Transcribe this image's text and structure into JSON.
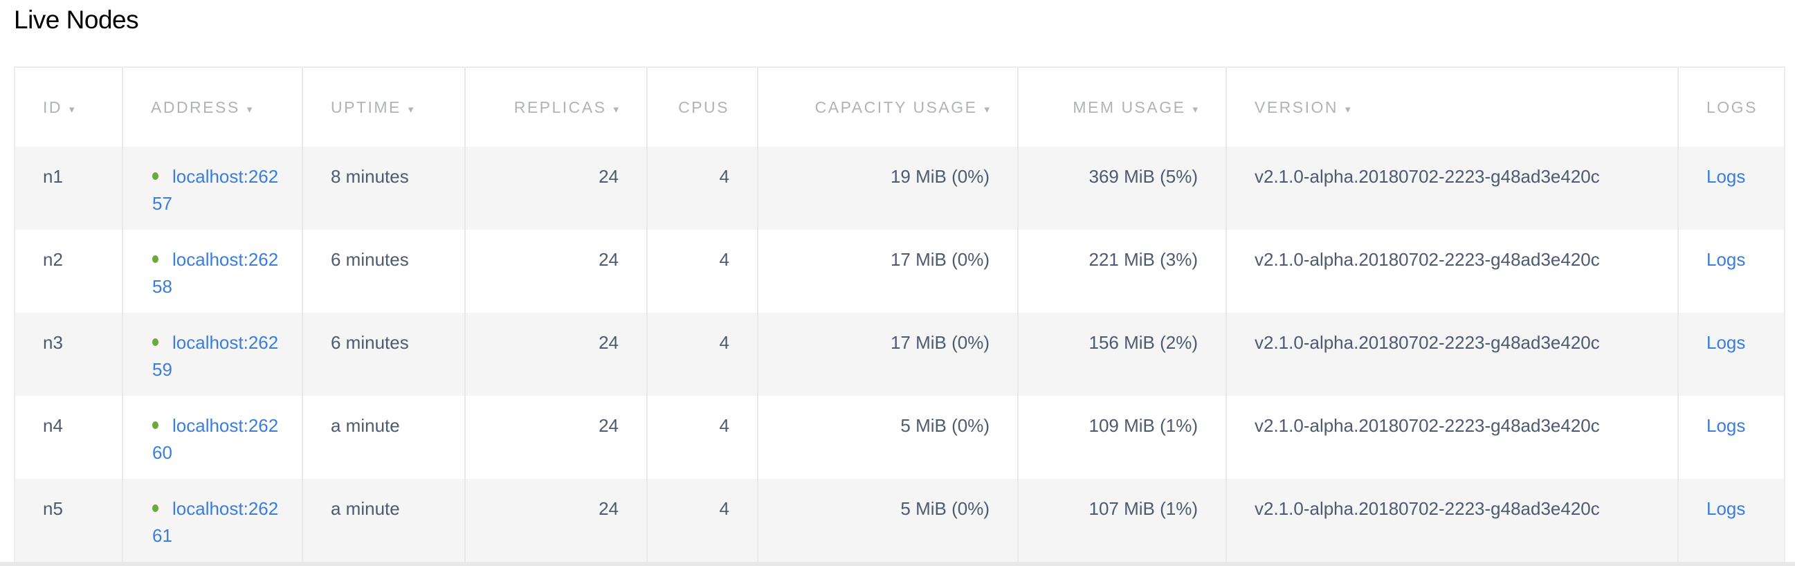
{
  "title": "Live Nodes",
  "columns": [
    {
      "label": "ID",
      "sortable": true
    },
    {
      "label": "ADDRESS",
      "sortable": true
    },
    {
      "label": "UPTIME",
      "sortable": true
    },
    {
      "label": "REPLICAS",
      "sortable": true
    },
    {
      "label": "CPUS",
      "sortable": false
    },
    {
      "label": "CAPACITY USAGE",
      "sortable": true
    },
    {
      "label": "MEM USAGE",
      "sortable": true
    },
    {
      "label": "VERSION",
      "sortable": true
    },
    {
      "label": "LOGS",
      "sortable": false
    }
  ],
  "sort_icon": "▾",
  "status_color": "#6ea83c",
  "rows": [
    {
      "id": "n1",
      "address": "localhost:26257",
      "uptime": "8 minutes",
      "replicas": "24",
      "cpus": "4",
      "capacity": "19 MiB (0%)",
      "mem": "369 MiB (5%)",
      "version": "v2.1.0-alpha.20180702-2223-g48ad3e420c",
      "logs": "Logs"
    },
    {
      "id": "n2",
      "address": "localhost:26258",
      "uptime": "6 minutes",
      "replicas": "24",
      "cpus": "4",
      "capacity": "17 MiB (0%)",
      "mem": "221 MiB (3%)",
      "version": "v2.1.0-alpha.20180702-2223-g48ad3e420c",
      "logs": "Logs"
    },
    {
      "id": "n3",
      "address": "localhost:26259",
      "uptime": "6 minutes",
      "replicas": "24",
      "cpus": "4",
      "capacity": "17 MiB (0%)",
      "mem": "156 MiB (2%)",
      "version": "v2.1.0-alpha.20180702-2223-g48ad3e420c",
      "logs": "Logs"
    },
    {
      "id": "n4",
      "address": "localhost:26260",
      "uptime": "a minute",
      "replicas": "24",
      "cpus": "4",
      "capacity": "5 MiB (0%)",
      "mem": "109 MiB (1%)",
      "version": "v2.1.0-alpha.20180702-2223-g48ad3e420c",
      "logs": "Logs"
    },
    {
      "id": "n5",
      "address": "localhost:26261",
      "uptime": "a minute",
      "replicas": "24",
      "cpus": "4",
      "capacity": "5 MiB (0%)",
      "mem": "107 MiB (1%)",
      "version": "v2.1.0-alpha.20180702-2223-g48ad3e420c",
      "logs": "Logs"
    }
  ]
}
